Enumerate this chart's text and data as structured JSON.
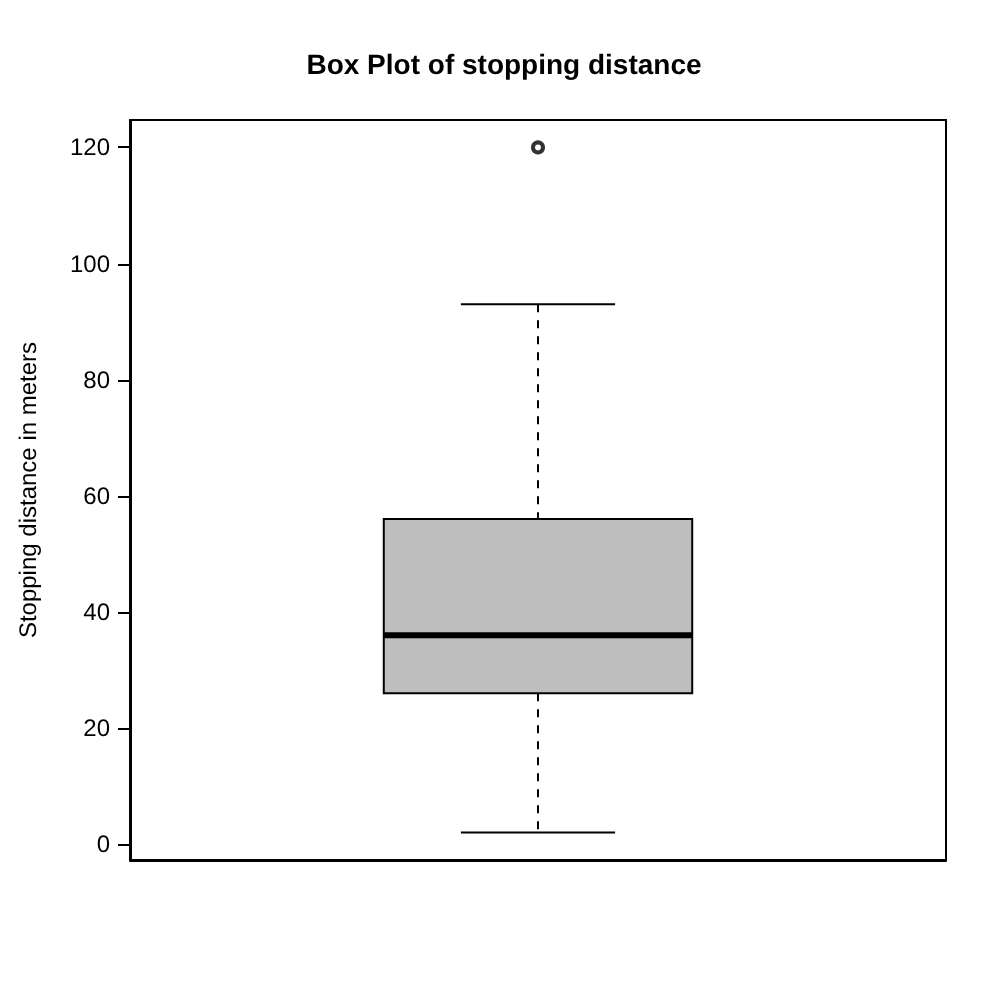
{
  "chart_data": {
    "type": "box",
    "title": "Box Plot of stopping distance",
    "ylabel": "Stopping distance in meters",
    "categories": [
      null
    ],
    "boxes": [
      {
        "low": 2,
        "q1": 26,
        "median": 36,
        "q3": 56,
        "high": 93,
        "outliers": [
          120
        ]
      }
    ],
    "color": "#bebebe",
    "line_style": "dashed",
    "ylim": [
      -2.72,
      124.72
    ],
    "yticks": [
      0,
      20,
      40,
      60,
      80,
      100,
      120
    ],
    "tick_labels": "y",
    "grid": false
  }
}
